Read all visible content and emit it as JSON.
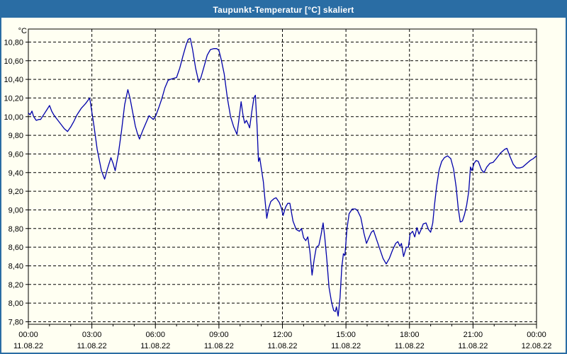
{
  "window": {
    "title": "Taupunkt-Temperatur [°C] skaliert"
  },
  "colors": {
    "titlebar": "#2a6da4",
    "window_border": "#2a6da4",
    "background": "#fffff2",
    "line": "#0000aa",
    "grid": "#000000",
    "text": "#000000"
  },
  "chart_data": {
    "type": "line",
    "title": "Taupunkt-Temperatur [°C] skaliert",
    "y_unit_label": "°C",
    "xlabel": "",
    "ylabel": "",
    "grid": "dashed",
    "legend_position": "none",
    "ylim": [
      7.773,
      10.94
    ],
    "x_hours_range": [
      0,
      24
    ],
    "x_minor_tick_every_hours": 1,
    "y_ticks": [
      {
        "value": 10.8,
        "label": "10,80"
      },
      {
        "value": 10.6,
        "label": "10,60"
      },
      {
        "value": 10.4,
        "label": "10,40"
      },
      {
        "value": 10.2,
        "label": "10,20"
      },
      {
        "value": 10.0,
        "label": "10,00"
      },
      {
        "value": 9.8,
        "label": "9,80"
      },
      {
        "value": 9.6,
        "label": "9,60"
      },
      {
        "value": 9.4,
        "label": "9,40"
      },
      {
        "value": 9.2,
        "label": "9,20"
      },
      {
        "value": 9.0,
        "label": "9,00"
      },
      {
        "value": 8.8,
        "label": "8,80"
      },
      {
        "value": 8.6,
        "label": "8,60"
      },
      {
        "value": 8.4,
        "label": "8,40"
      },
      {
        "value": 8.2,
        "label": "8,20"
      },
      {
        "value": 8.0,
        "label": "8,00"
      },
      {
        "value": 7.8,
        "label": "7,80"
      }
    ],
    "x_major_ticks": [
      {
        "hour": 0,
        "time": "00:00",
        "date": "11.08.22"
      },
      {
        "hour": 3,
        "time": "03:00",
        "date": "11.08.22"
      },
      {
        "hour": 6,
        "time": "06:00",
        "date": "11.08.22"
      },
      {
        "hour": 9,
        "time": "09:00",
        "date": "11.08.22"
      },
      {
        "hour": 12,
        "time": "12:00",
        "date": "11.08.22"
      },
      {
        "hour": 15,
        "time": "15:00",
        "date": "11.08.22"
      },
      {
        "hour": 18,
        "time": "18:00",
        "date": "11.08.22"
      },
      {
        "hour": 21,
        "time": "21:00",
        "date": "11.08.22"
      },
      {
        "hour": 24,
        "time": "00:00",
        "date": "12.08.22"
      }
    ],
    "series": [
      {
        "name": "Taupunkt-Temperatur",
        "color": "#0000aa",
        "points": [
          [
            0.0,
            10.04
          ],
          [
            0.08,
            10.02
          ],
          [
            0.17,
            10.06
          ],
          [
            0.25,
            10.0
          ],
          [
            0.37,
            9.96
          ],
          [
            0.5,
            9.97
          ],
          [
            0.58,
            9.97
          ],
          [
            0.75,
            10.03
          ],
          [
            0.92,
            10.09
          ],
          [
            1.0,
            10.12
          ],
          [
            1.1,
            10.06
          ],
          [
            1.2,
            10.02
          ],
          [
            1.33,
            9.98
          ],
          [
            1.5,
            9.93
          ],
          [
            1.7,
            9.87
          ],
          [
            1.85,
            9.84
          ],
          [
            2.0,
            9.89
          ],
          [
            2.15,
            9.95
          ],
          [
            2.3,
            10.02
          ],
          [
            2.5,
            10.09
          ],
          [
            2.7,
            10.14
          ],
          [
            2.9,
            10.2
          ],
          [
            3.0,
            10.05
          ],
          [
            3.1,
            9.9
          ],
          [
            3.25,
            9.65
          ],
          [
            3.45,
            9.42
          ],
          [
            3.6,
            9.33
          ],
          [
            3.75,
            9.45
          ],
          [
            3.9,
            9.56
          ],
          [
            4.0,
            9.5
          ],
          [
            4.1,
            9.42
          ],
          [
            4.25,
            9.6
          ],
          [
            4.4,
            9.85
          ],
          [
            4.55,
            10.13
          ],
          [
            4.7,
            10.29
          ],
          [
            4.8,
            10.2
          ],
          [
            4.9,
            10.08
          ],
          [
            5.05,
            9.9
          ],
          [
            5.15,
            9.82
          ],
          [
            5.25,
            9.76
          ],
          [
            5.4,
            9.85
          ],
          [
            5.55,
            9.93
          ],
          [
            5.7,
            10.01
          ],
          [
            5.8,
            9.99
          ],
          [
            5.9,
            9.97
          ],
          [
            6.0,
            10.0
          ],
          [
            6.15,
            10.09
          ],
          [
            6.3,
            10.19
          ],
          [
            6.45,
            10.31
          ],
          [
            6.6,
            10.39
          ],
          [
            6.7,
            10.4
          ],
          [
            6.85,
            10.41
          ],
          [
            7.0,
            10.42
          ],
          [
            7.15,
            10.52
          ],
          [
            7.3,
            10.65
          ],
          [
            7.45,
            10.77
          ],
          [
            7.55,
            10.83
          ],
          [
            7.65,
            10.84
          ],
          [
            7.75,
            10.73
          ],
          [
            7.9,
            10.52
          ],
          [
            8.05,
            10.37
          ],
          [
            8.15,
            10.42
          ],
          [
            8.3,
            10.54
          ],
          [
            8.45,
            10.66
          ],
          [
            8.6,
            10.72
          ],
          [
            8.75,
            10.73
          ],
          [
            8.9,
            10.73
          ],
          [
            9.0,
            10.71
          ],
          [
            9.1,
            10.62
          ],
          [
            9.25,
            10.46
          ],
          [
            9.4,
            10.2
          ],
          [
            9.55,
            10.0
          ],
          [
            9.7,
            9.89
          ],
          [
            9.85,
            9.81
          ],
          [
            9.95,
            9.98
          ],
          [
            10.05,
            10.16
          ],
          [
            10.15,
            10.0
          ],
          [
            10.22,
            9.93
          ],
          [
            10.3,
            9.96
          ],
          [
            10.38,
            9.92
          ],
          [
            10.45,
            9.88
          ],
          [
            10.55,
            10.05
          ],
          [
            10.65,
            10.2
          ],
          [
            10.72,
            10.23
          ],
          [
            10.8,
            9.9
          ],
          [
            10.87,
            9.52
          ],
          [
            10.93,
            9.56
          ],
          [
            11.0,
            9.45
          ],
          [
            11.1,
            9.3
          ],
          [
            11.18,
            9.1
          ],
          [
            11.26,
            8.91
          ],
          [
            11.35,
            9.02
          ],
          [
            11.45,
            9.09
          ],
          [
            11.6,
            9.12
          ],
          [
            11.7,
            9.13
          ],
          [
            11.85,
            9.08
          ],
          [
            11.95,
            9.02
          ],
          [
            12.03,
            8.94
          ],
          [
            12.15,
            9.03
          ],
          [
            12.25,
            9.07
          ],
          [
            12.35,
            9.07
          ],
          [
            12.5,
            8.88
          ],
          [
            12.65,
            8.79
          ],
          [
            12.8,
            8.77
          ],
          [
            12.9,
            8.8
          ],
          [
            13.0,
            8.7
          ],
          [
            13.1,
            8.67
          ],
          [
            13.2,
            8.71
          ],
          [
            13.3,
            8.55
          ],
          [
            13.4,
            8.3
          ],
          [
            13.5,
            8.47
          ],
          [
            13.6,
            8.6
          ],
          [
            13.72,
            8.62
          ],
          [
            13.82,
            8.73
          ],
          [
            13.92,
            8.86
          ],
          [
            14.0,
            8.7
          ],
          [
            14.1,
            8.46
          ],
          [
            14.2,
            8.17
          ],
          [
            14.32,
            8.01
          ],
          [
            14.42,
            7.92
          ],
          [
            14.5,
            7.91
          ],
          [
            14.55,
            7.96
          ],
          [
            14.63,
            7.86
          ],
          [
            14.72,
            8.06
          ],
          [
            14.8,
            8.38
          ],
          [
            14.88,
            8.53
          ],
          [
            14.95,
            8.51
          ],
          [
            15.05,
            8.8
          ],
          [
            15.15,
            8.96
          ],
          [
            15.3,
            9.01
          ],
          [
            15.45,
            9.01
          ],
          [
            15.55,
            8.99
          ],
          [
            15.7,
            8.92
          ],
          [
            15.85,
            8.75
          ],
          [
            15.97,
            8.64
          ],
          [
            16.1,
            8.71
          ],
          [
            16.2,
            8.76
          ],
          [
            16.3,
            8.78
          ],
          [
            16.45,
            8.68
          ],
          [
            16.6,
            8.58
          ],
          [
            16.75,
            8.48
          ],
          [
            16.9,
            8.42
          ],
          [
            17.05,
            8.48
          ],
          [
            17.2,
            8.57
          ],
          [
            17.35,
            8.64
          ],
          [
            17.45,
            8.66
          ],
          [
            17.55,
            8.61
          ],
          [
            17.62,
            8.64
          ],
          [
            17.72,
            8.5
          ],
          [
            17.85,
            8.6
          ],
          [
            17.95,
            8.6
          ],
          [
            18.03,
            8.74
          ],
          [
            18.15,
            8.77
          ],
          [
            18.25,
            8.71
          ],
          [
            18.35,
            8.81
          ],
          [
            18.45,
            8.74
          ],
          [
            18.55,
            8.79
          ],
          [
            18.65,
            8.85
          ],
          [
            18.78,
            8.86
          ],
          [
            18.9,
            8.79
          ],
          [
            19.0,
            8.76
          ],
          [
            19.1,
            8.86
          ],
          [
            19.18,
            9.05
          ],
          [
            19.28,
            9.25
          ],
          [
            19.4,
            9.43
          ],
          [
            19.52,
            9.52
          ],
          [
            19.65,
            9.56
          ],
          [
            19.8,
            9.58
          ],
          [
            19.95,
            9.55
          ],
          [
            20.08,
            9.44
          ],
          [
            20.2,
            9.25
          ],
          [
            20.3,
            9.02
          ],
          [
            20.4,
            8.87
          ],
          [
            20.5,
            8.88
          ],
          [
            20.6,
            8.95
          ],
          [
            20.7,
            9.05
          ],
          [
            20.8,
            9.2
          ],
          [
            20.88,
            9.46
          ],
          [
            20.95,
            9.42
          ],
          [
            21.05,
            9.5
          ],
          [
            21.15,
            9.53
          ],
          [
            21.25,
            9.52
          ],
          [
            21.4,
            9.43
          ],
          [
            21.52,
            9.4
          ],
          [
            21.65,
            9.46
          ],
          [
            21.8,
            9.5
          ],
          [
            21.95,
            9.51
          ],
          [
            22.1,
            9.55
          ],
          [
            22.3,
            9.61
          ],
          [
            22.5,
            9.65
          ],
          [
            22.6,
            9.66
          ],
          [
            22.75,
            9.57
          ],
          [
            22.9,
            9.49
          ],
          [
            23.05,
            9.45
          ],
          [
            23.2,
            9.45
          ],
          [
            23.35,
            9.46
          ],
          [
            23.5,
            9.49
          ],
          [
            23.7,
            9.53
          ],
          [
            23.85,
            9.55
          ],
          [
            24.0,
            9.58
          ]
        ]
      }
    ]
  }
}
